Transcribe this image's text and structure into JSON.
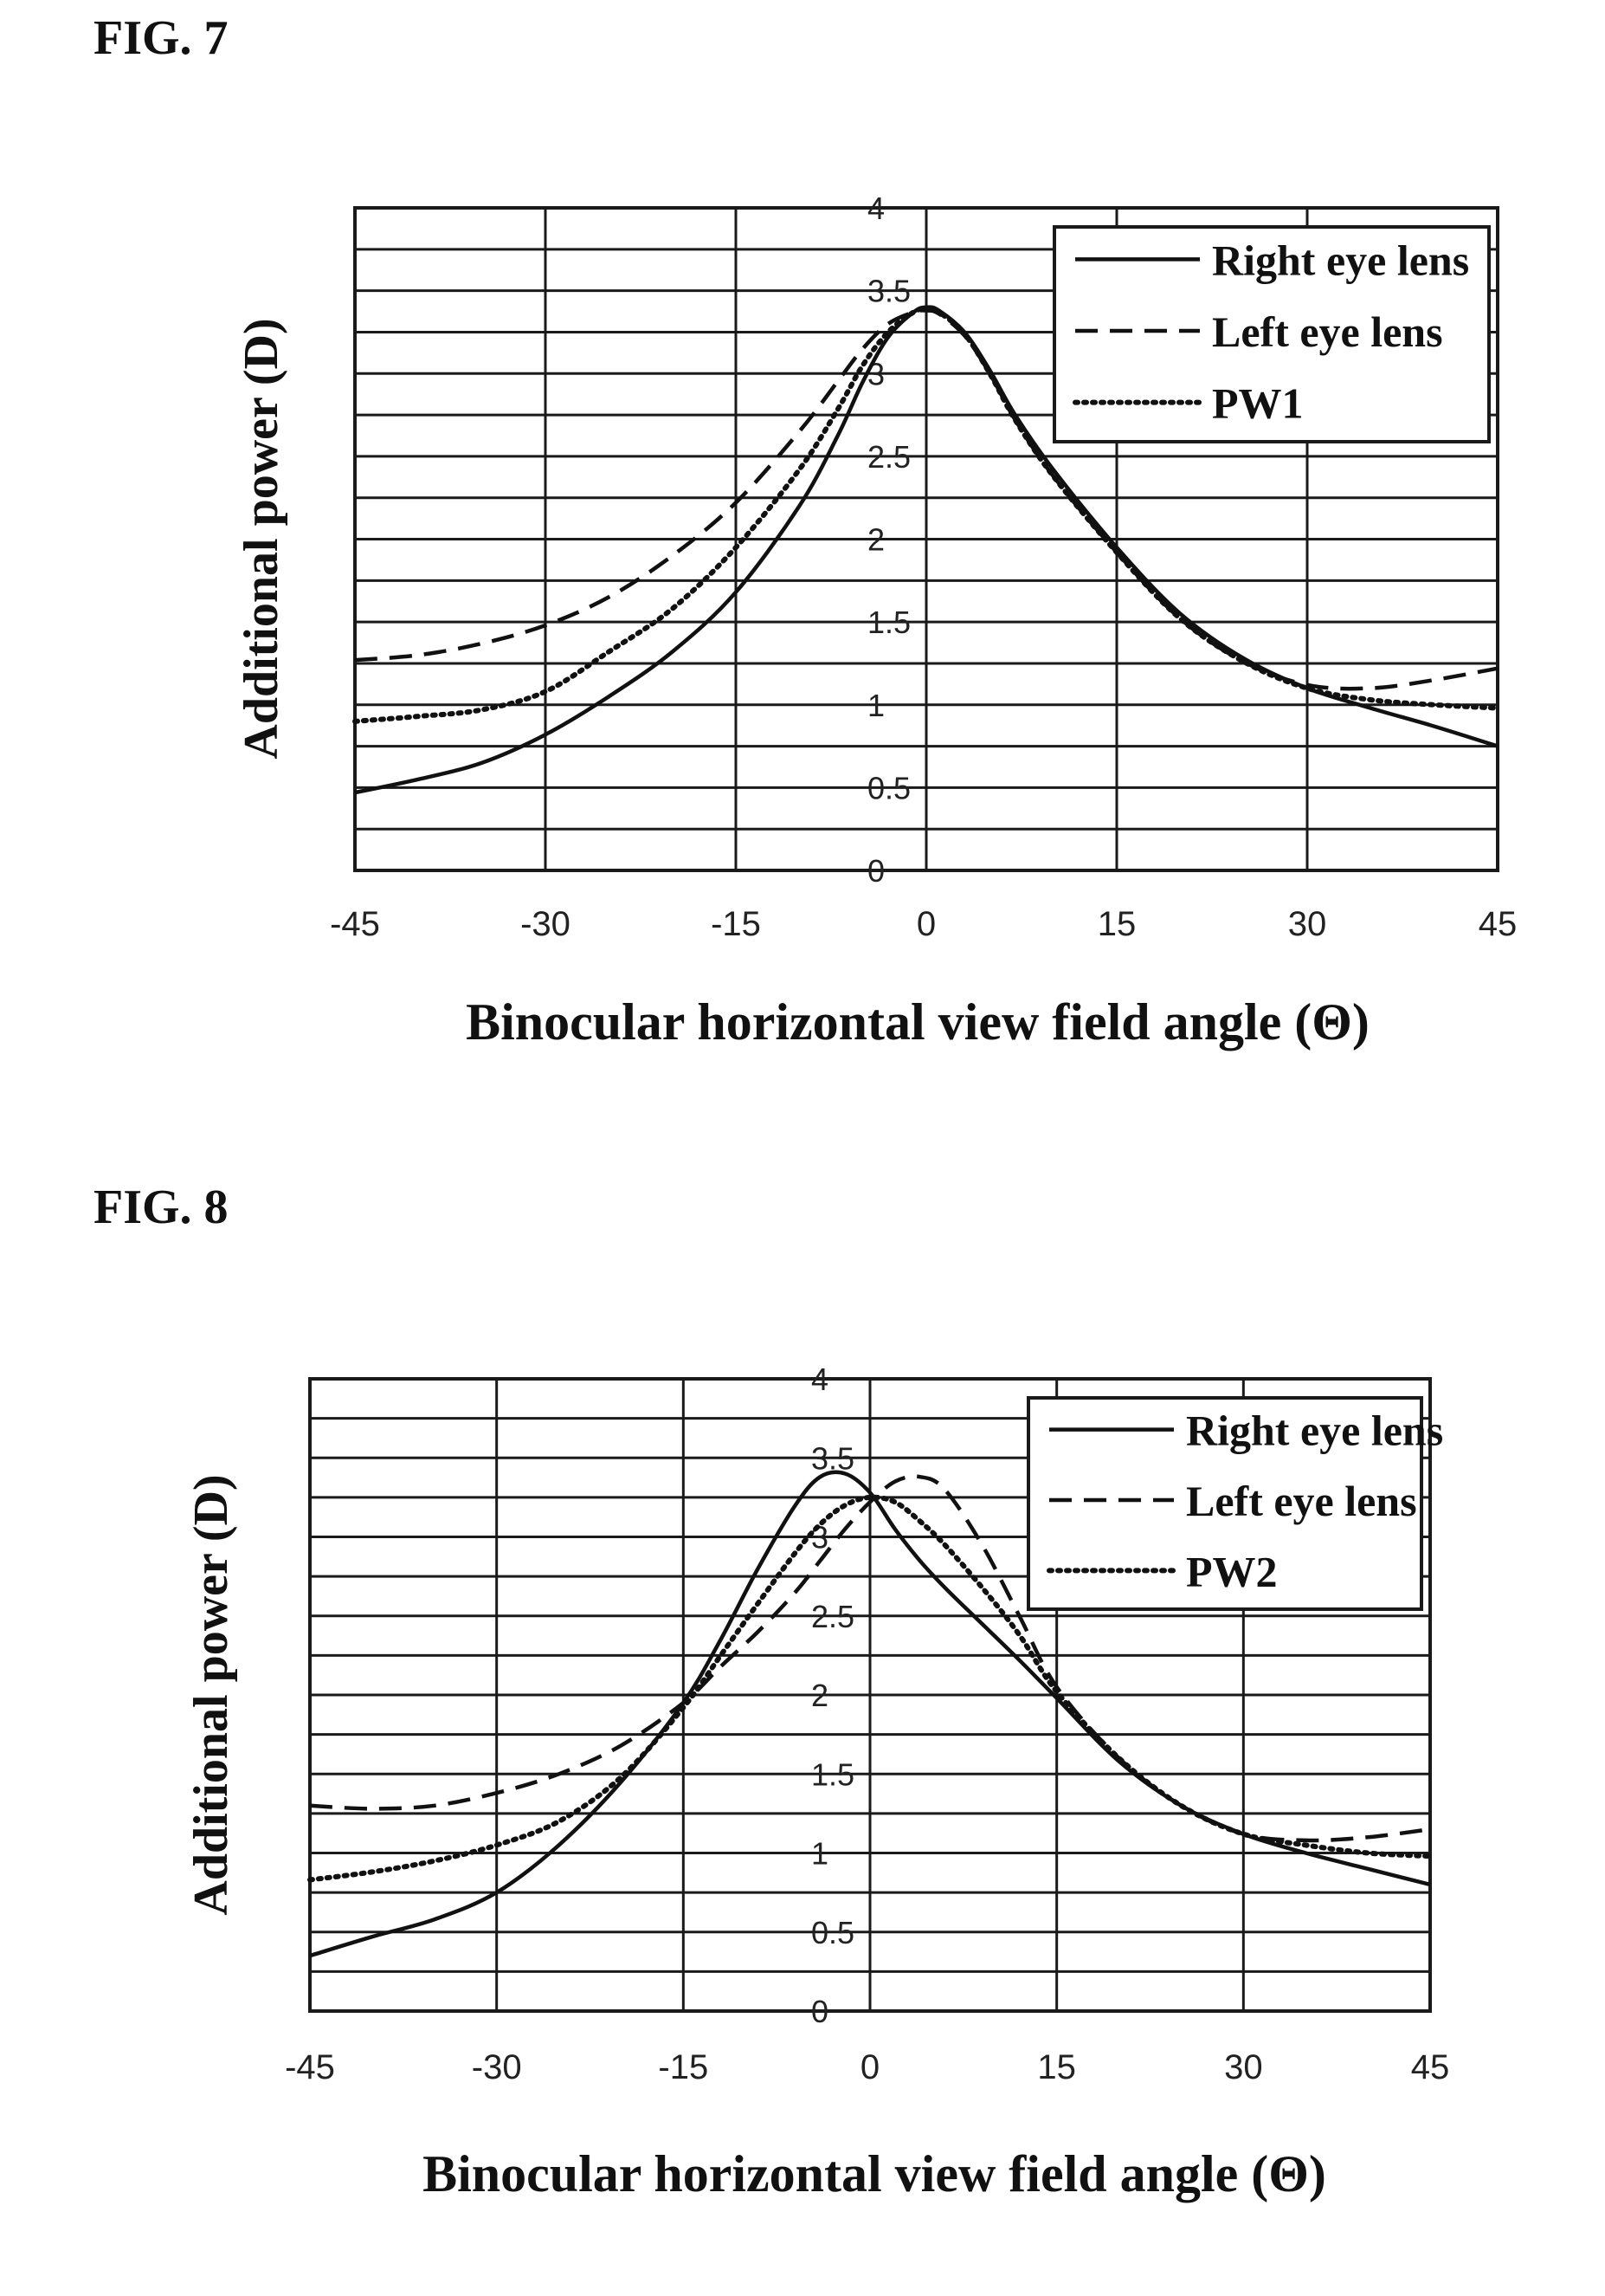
{
  "figures": [
    {
      "label": "FIG. 7",
      "ylabel": "Additional power (D)",
      "xlabel": "Binocular horizontal view field angle (Θ)",
      "chart_data": {
        "type": "line",
        "xlim": [
          -45,
          45
        ],
        "ylim": [
          0,
          4
        ],
        "xticks": [
          -45,
          -30,
          -15,
          0,
          15,
          30,
          45
        ],
        "xtick_labels": [
          "-45",
          "-30",
          "-15",
          "0",
          "15",
          "30",
          "45"
        ],
        "yticks": [
          0,
          0.5,
          1,
          1.5,
          2,
          2.5,
          3,
          3.5,
          4
        ],
        "ytick_labels": [
          "0",
          "0.5",
          "1",
          "1.5",
          "2",
          "2.5",
          "3",
          "3.5",
          "4"
        ],
        "grid": true,
        "legend": "top-right",
        "series": [
          {
            "name": "Right eye lens",
            "style": "solid",
            "x": [
              -45,
              -40,
              -35,
              -30,
              -25,
              -20,
              -15,
              -10,
              -7,
              -5,
              -3,
              -1,
              0,
              1,
              3,
              5,
              7,
              10,
              15,
              20,
              25,
              30,
              35,
              40,
              45
            ],
            "y": [
              0.47,
              0.55,
              0.65,
              0.82,
              1.05,
              1.32,
              1.68,
              2.2,
              2.62,
              2.95,
              3.22,
              3.37,
              3.4,
              3.38,
              3.25,
              3.02,
              2.75,
              2.42,
              1.95,
              1.55,
              1.28,
              1.1,
              0.98,
              0.87,
              0.75
            ]
          },
          {
            "name": "Left eye lens",
            "style": "dashed",
            "x": [
              -45,
              -40,
              -35,
              -30,
              -25,
              -20,
              -15,
              -10,
              -7,
              -5,
              -3,
              -1,
              0,
              1,
              3,
              5,
              7,
              10,
              15,
              20,
              25,
              30,
              35,
              40,
              45
            ],
            "y": [
              1.27,
              1.3,
              1.37,
              1.48,
              1.65,
              1.9,
              2.22,
              2.65,
              2.95,
              3.15,
              3.3,
              3.37,
              3.38,
              3.36,
              3.23,
              3.0,
              2.72,
              2.38,
              1.92,
              1.52,
              1.26,
              1.12,
              1.1,
              1.15,
              1.22
            ]
          },
          {
            "name": "PW1",
            "style": "dotted",
            "x": [
              -45,
              -40,
              -35,
              -30,
              -25,
              -20,
              -15,
              -10,
              -7,
              -5,
              -3,
              -1,
              0,
              1,
              3,
              5,
              7,
              10,
              15,
              20,
              25,
              30,
              35,
              40,
              45
            ],
            "y": [
              0.9,
              0.93,
              0.97,
              1.08,
              1.32,
              1.58,
              1.95,
              2.42,
              2.78,
              3.05,
              3.25,
              3.37,
              3.39,
              3.37,
              3.24,
              3.0,
              2.72,
              2.38,
              1.92,
              1.52,
              1.26,
              1.1,
              1.03,
              1.0,
              0.98
            ]
          }
        ]
      }
    },
    {
      "label": "FIG. 8",
      "ylabel": "Additional power (D)",
      "xlabel": "Binocular horizontal view field angle (Θ)",
      "chart_data": {
        "type": "line",
        "xlim": [
          -45,
          45
        ],
        "ylim": [
          0,
          4
        ],
        "xticks": [
          -45,
          -30,
          -15,
          0,
          15,
          30,
          45
        ],
        "xtick_labels": [
          "-45",
          "-30",
          "-15",
          "0",
          "15",
          "30",
          "45"
        ],
        "yticks": [
          0,
          0.5,
          1,
          1.5,
          2,
          2.5,
          3,
          3.5,
          4
        ],
        "ytick_labels": [
          "0",
          "0.5",
          "1",
          "1.5",
          "2",
          "2.5",
          "3",
          "3.5",
          "4"
        ],
        "grid": true,
        "legend": "top-right",
        "series": [
          {
            "name": "Right eye lens",
            "style": "solid",
            "x": [
              -45,
              -40,
              -35,
              -30,
              -25,
              -20,
              -15,
              -12,
              -9,
              -6,
              -4,
              -2,
              0,
              2,
              4,
              6,
              9,
              12,
              15,
              20,
              25,
              30,
              35,
              40,
              45
            ],
            "y": [
              0.35,
              0.47,
              0.58,
              0.75,
              1.05,
              1.45,
              1.95,
              2.35,
              2.8,
              3.2,
              3.38,
              3.4,
              3.28,
              3.05,
              2.85,
              2.68,
              2.45,
              2.22,
              1.98,
              1.58,
              1.3,
              1.12,
              1.0,
              0.9,
              0.8
            ]
          },
          {
            "name": "Left eye lens",
            "style": "dashed",
            "x": [
              -45,
              -40,
              -35,
              -30,
              -25,
              -20,
              -15,
              -12,
              -9,
              -6,
              -4,
              -2,
              0,
              2,
              4,
              6,
              9,
              12,
              15,
              20,
              25,
              30,
              35,
              40,
              45
            ],
            "y": [
              1.3,
              1.28,
              1.3,
              1.38,
              1.5,
              1.68,
              1.95,
              2.18,
              2.4,
              2.65,
              2.85,
              3.05,
              3.22,
              3.35,
              3.38,
              3.3,
              2.95,
              2.5,
              2.05,
              1.6,
              1.3,
              1.12,
              1.08,
              1.1,
              1.15
            ]
          },
          {
            "name": "PW2",
            "style": "dotted",
            "x": [
              -45,
              -40,
              -35,
              -30,
              -25,
              -20,
              -15,
              -12,
              -9,
              -6,
              -4,
              -2,
              0,
              2,
              4,
              6,
              9,
              12,
              15,
              20,
              25,
              30,
              35,
              40,
              45
            ],
            "y": [
              0.83,
              0.88,
              0.95,
              1.05,
              1.2,
              1.48,
              1.92,
              2.25,
              2.58,
              2.9,
              3.08,
              3.2,
              3.25,
              3.22,
              3.1,
              2.95,
              2.68,
              2.38,
              2.02,
              1.6,
              1.3,
              1.12,
              1.05,
              1.0,
              0.98
            ]
          }
        ]
      }
    }
  ]
}
